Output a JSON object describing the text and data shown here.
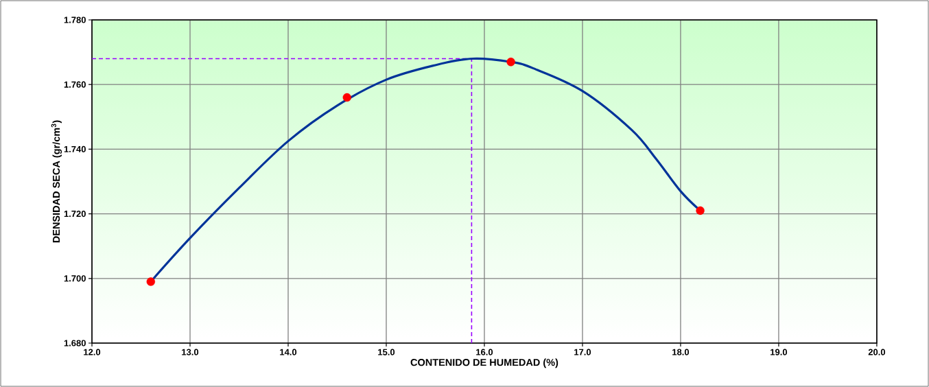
{
  "chart_data": {
    "type": "scatter",
    "xlabel": "CONTENIDO DE HUMEDAD (%)",
    "ylabel": "DENSIDAD SECA (gr/cm$^{3}$)",
    "xlim": [
      12,
      20
    ],
    "ylim": [
      1.68,
      1.78
    ],
    "xticks": [
      {
        "value": 12,
        "label": "12.0"
      },
      {
        "value": 13,
        "label": "13.0"
      },
      {
        "value": 14,
        "label": "14.0"
      },
      {
        "value": 15,
        "label": "15.0"
      },
      {
        "value": 16,
        "label": "16.0"
      },
      {
        "value": 17,
        "label": "17.0"
      },
      {
        "value": 18,
        "label": "18.0"
      },
      {
        "value": 19,
        "label": "19.0"
      },
      {
        "value": 20,
        "label": "20.0"
      }
    ],
    "yticks": [
      {
        "value": 1.68,
        "label": "1.680"
      },
      {
        "value": 1.7,
        "label": "1.700"
      },
      {
        "value": 1.72,
        "label": "1.720"
      },
      {
        "value": 1.74,
        "label": "1.740"
      },
      {
        "value": 1.76,
        "label": "1.760"
      },
      {
        "value": 1.78,
        "label": "1.780"
      }
    ],
    "grid": true,
    "series": [
      {
        "type": "line",
        "color": "#003399",
        "marker": "none",
        "line_style": "solid",
        "x": [
          12.6,
          13.0,
          13.5,
          14.0,
          14.5,
          15.0,
          15.5,
          15.88,
          16.27,
          16.5,
          17.0,
          17.5,
          17.75,
          18.0,
          18.2
        ],
        "values": [
          1.699,
          1.7125,
          1.728,
          1.7425,
          1.7535,
          1.7615,
          1.766,
          1.768,
          1.767,
          1.765,
          1.758,
          1.746,
          1.737,
          1.727,
          1.721
        ]
      },
      {
        "color": "#ff0000",
        "marker": "circle",
        "x": [
          12.6,
          14.6,
          16.27,
          18.2
        ],
        "values": [
          1.699,
          1.756,
          1.767,
          1.721
        ]
      }
    ],
    "ref_lines": [
      {
        "axis": "y",
        "value": 1.768,
        "color": "#9900ff",
        "line_style": "dashed"
      },
      {
        "axis": "x",
        "value": 15.87,
        "color": "#9900ff",
        "line_style": "dashed"
      }
    ]
  }
}
